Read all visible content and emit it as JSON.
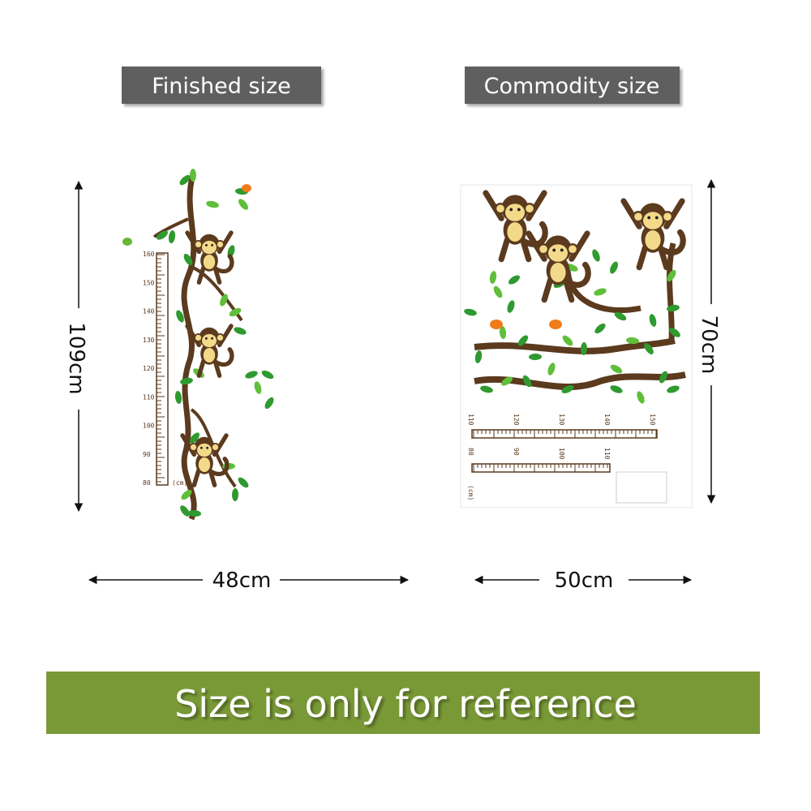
{
  "header": {
    "left_label": "Finished size",
    "right_label": "Commodity size"
  },
  "finished": {
    "height": "109cm",
    "width": "48cm",
    "ruler_labels": [
      "160",
      "150",
      "140",
      "130",
      "120",
      "110",
      "100",
      "90",
      "80"
    ],
    "ruler_unit": "(cm)"
  },
  "commodity": {
    "height": "70cm",
    "width": "50cm",
    "ruler_top_labels": [
      "110",
      "120",
      "130",
      "140",
      "150"
    ],
    "ruler_bottom_labels": [
      "80",
      "90",
      "100",
      "110"
    ],
    "ruler_unit": "(cm)"
  },
  "footer": {
    "note": "Size is only for reference"
  }
}
